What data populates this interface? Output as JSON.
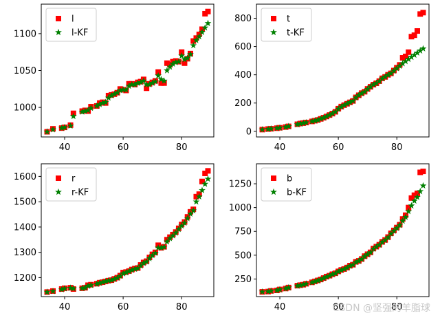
{
  "watermark": "CSDN @坚强的羊脂球",
  "colors": {
    "raw": "#ff0000",
    "kf": "#008000",
    "axis": "#000000",
    "legend_border": "#cccccc"
  },
  "chart_data": [
    {
      "type": "scatter",
      "xlim": [
        32,
        91
      ],
      "ylim": [
        960,
        1140
      ],
      "xticks": [
        40,
        60,
        80
      ],
      "yticks": [
        1000,
        1050,
        1100
      ],
      "legend": "top-left",
      "series": [
        {
          "name": "l",
          "marker": "square",
          "color": "#ff0000",
          "x": [
            34,
            36,
            39,
            40,
            42,
            43,
            46,
            47,
            48,
            49,
            51,
            52,
            53,
            54,
            55,
            56,
            57,
            58,
            59,
            60,
            61,
            62,
            63,
            64,
            65,
            66,
            67,
            68,
            69,
            70,
            71,
            72,
            73,
            74,
            75,
            76,
            77,
            78,
            79,
            80,
            81,
            82,
            83,
            84,
            85,
            86,
            87,
            88,
            89
          ],
          "y": [
            967,
            971,
            972,
            973,
            976,
            992,
            995,
            996,
            995,
            1001,
            1002,
            1006,
            1007,
            1006,
            1016,
            1017,
            1018,
            1020,
            1025,
            1024,
            1023,
            1032,
            1032,
            1031,
            1034,
            1035,
            1038,
            1026,
            1032,
            1034,
            1036,
            1048,
            1033,
            1033,
            1060,
            1058,
            1062,
            1063,
            1062,
            1075,
            1060,
            1066,
            1073,
            1090,
            1094,
            1099,
            1106,
            1127,
            1130
          ]
        },
        {
          "name": "l-KF",
          "marker": "star",
          "color": "#008000",
          "x": [
            34,
            36,
            39,
            40,
            42,
            43,
            46,
            47,
            48,
            49,
            51,
            52,
            53,
            54,
            55,
            56,
            57,
            58,
            59,
            60,
            61,
            62,
            63,
            64,
            65,
            66,
            67,
            68,
            69,
            70,
            71,
            72,
            73,
            74,
            75,
            76,
            77,
            78,
            79,
            80,
            81,
            82,
            83,
            84,
            85,
            86,
            87,
            88,
            89
          ],
          "y": [
            967,
            970,
            972,
            973,
            975,
            988,
            994,
            995,
            996,
            999,
            1002,
            1004,
            1006,
            1007,
            1013,
            1016,
            1018,
            1020,
            1023,
            1024,
            1024,
            1029,
            1031,
            1031,
            1033,
            1034,
            1036,
            1031,
            1031,
            1033,
            1035,
            1043,
            1038,
            1036,
            1050,
            1055,
            1059,
            1061,
            1062,
            1070,
            1065,
            1067,
            1072,
            1084,
            1091,
            1096,
            1102,
            1108,
            1114
          ]
        }
      ]
    },
    {
      "type": "scatter",
      "xlim": [
        32,
        91
      ],
      "ylim": [
        -40,
        900
      ],
      "xticks": [
        40,
        60,
        80
      ],
      "yticks": [
        0,
        200,
        400,
        600,
        800
      ],
      "legend": "top-left",
      "series": [
        {
          "name": "t",
          "marker": "square",
          "color": "#ff0000",
          "x": [
            34,
            36,
            37,
            39,
            40,
            42,
            43,
            46,
            47,
            48,
            49,
            51,
            52,
            53,
            54,
            55,
            56,
            57,
            58,
            59,
            60,
            61,
            62,
            63,
            64,
            65,
            66,
            67,
            68,
            69,
            70,
            71,
            72,
            73,
            74,
            75,
            76,
            77,
            78,
            79,
            80,
            81,
            82,
            83,
            84,
            85,
            86,
            87,
            88,
            89
          ],
          "y": [
            12,
            16,
            18,
            22,
            25,
            30,
            35,
            50,
            55,
            58,
            62,
            70,
            75,
            80,
            88,
            96,
            105,
            115,
            125,
            138,
            160,
            175,
            185,
            195,
            205,
            215,
            240,
            255,
            270,
            280,
            300,
            315,
            330,
            340,
            355,
            375,
            385,
            400,
            410,
            430,
            450,
            470,
            520,
            530,
            560,
            670,
            680,
            710,
            830,
            840
          ]
        },
        {
          "name": "t-KF",
          "marker": "star",
          "color": "#008000",
          "x": [
            34,
            36,
            37,
            39,
            40,
            42,
            43,
            46,
            47,
            48,
            49,
            51,
            52,
            53,
            54,
            55,
            56,
            57,
            58,
            59,
            60,
            61,
            62,
            63,
            64,
            65,
            66,
            67,
            68,
            69,
            70,
            71,
            72,
            73,
            74,
            75,
            76,
            77,
            78,
            79,
            80,
            81,
            82,
            83,
            84,
            85,
            86,
            87,
            88,
            89
          ],
          "y": [
            12,
            15,
            18,
            22,
            25,
            30,
            35,
            48,
            54,
            58,
            62,
            70,
            75,
            80,
            88,
            96,
            105,
            115,
            125,
            138,
            158,
            173,
            185,
            195,
            205,
            215,
            238,
            255,
            268,
            280,
            298,
            315,
            330,
            340,
            355,
            373,
            385,
            398,
            410,
            428,
            445,
            462,
            480,
            495,
            510,
            525,
            540,
            555,
            570,
            585
          ]
        }
      ]
    },
    {
      "type": "scatter",
      "xlim": [
        32,
        91
      ],
      "ylim": [
        1125,
        1650
      ],
      "xticks": [
        40,
        60,
        80
      ],
      "yticks": [
        1200,
        1300,
        1400,
        1500,
        1600
      ],
      "legend": "top-left",
      "series": [
        {
          "name": "r",
          "marker": "square",
          "color": "#ff0000",
          "x": [
            34,
            36,
            39,
            40,
            42,
            43,
            46,
            47,
            48,
            49,
            51,
            52,
            53,
            54,
            55,
            56,
            57,
            58,
            59,
            60,
            61,
            62,
            63,
            64,
            65,
            66,
            67,
            68,
            69,
            70,
            71,
            72,
            73,
            74,
            75,
            76,
            77,
            78,
            79,
            80,
            81,
            82,
            83,
            84,
            85,
            86,
            87,
            88,
            89
          ],
          "y": [
            1143,
            1147,
            1155,
            1158,
            1160,
            1155,
            1158,
            1160,
            1170,
            1172,
            1176,
            1180,
            1182,
            1185,
            1188,
            1190,
            1195,
            1200,
            1208,
            1220,
            1222,
            1226,
            1232,
            1236,
            1238,
            1250,
            1260,
            1265,
            1280,
            1292,
            1300,
            1328,
            1318,
            1322,
            1350,
            1360,
            1370,
            1380,
            1395,
            1410,
            1420,
            1440,
            1460,
            1470,
            1520,
            1530,
            1580,
            1612,
            1622
          ]
        },
        {
          "name": "r-KF",
          "marker": "star",
          "color": "#008000",
          "x": [
            34,
            36,
            39,
            40,
            42,
            43,
            46,
            47,
            48,
            49,
            51,
            52,
            53,
            54,
            55,
            56,
            57,
            58,
            59,
            60,
            61,
            62,
            63,
            64,
            65,
            66,
            67,
            68,
            69,
            70,
            71,
            72,
            73,
            74,
            75,
            76,
            77,
            78,
            79,
            80,
            81,
            82,
            83,
            84,
            85,
            86,
            87,
            88,
            89
          ],
          "y": [
            1143,
            1146,
            1153,
            1157,
            1159,
            1157,
            1158,
            1160,
            1167,
            1170,
            1175,
            1179,
            1182,
            1185,
            1188,
            1190,
            1194,
            1199,
            1206,
            1216,
            1220,
            1225,
            1230,
            1234,
            1237,
            1247,
            1257,
            1263,
            1276,
            1288,
            1297,
            1318,
            1318,
            1321,
            1342,
            1355,
            1366,
            1377,
            1391,
            1405,
            1416,
            1434,
            1452,
            1465,
            1500,
            1520,
            1545,
            1570,
            1590
          ]
        }
      ]
    },
    {
      "type": "scatter",
      "xlim": [
        32,
        91
      ],
      "ylim": [
        65,
        1460
      ],
      "xticks": [
        40,
        60,
        80
      ],
      "yticks": [
        250,
        500,
        750,
        1000,
        1250
      ],
      "legend": "top-left",
      "series": [
        {
          "name": "b",
          "marker": "square",
          "color": "#ff0000",
          "x": [
            34,
            36,
            37,
            39,
            40,
            42,
            43,
            46,
            47,
            48,
            49,
            51,
            52,
            53,
            54,
            55,
            56,
            57,
            58,
            59,
            60,
            61,
            62,
            63,
            64,
            65,
            66,
            67,
            68,
            69,
            70,
            71,
            72,
            73,
            74,
            75,
            76,
            77,
            78,
            79,
            80,
            81,
            82,
            83,
            84,
            85,
            86,
            87,
            88,
            89
          ],
          "y": [
            115,
            118,
            125,
            130,
            140,
            150,
            160,
            180,
            185,
            190,
            200,
            215,
            225,
            235,
            245,
            260,
            275,
            285,
            300,
            310,
            330,
            345,
            355,
            370,
            390,
            400,
            430,
            440,
            460,
            490,
            510,
            530,
            570,
            590,
            610,
            640,
            660,
            690,
            730,
            760,
            790,
            820,
            880,
            920,
            1000,
            1100,
            1130,
            1150,
            1370,
            1380
          ]
        },
        {
          "name": "b-KF",
          "marker": "star",
          "color": "#008000",
          "x": [
            34,
            36,
            37,
            39,
            40,
            42,
            43,
            46,
            47,
            48,
            49,
            51,
            52,
            53,
            54,
            55,
            56,
            57,
            58,
            59,
            60,
            61,
            62,
            63,
            64,
            65,
            66,
            67,
            68,
            69,
            70,
            71,
            72,
            73,
            74,
            75,
            76,
            77,
            78,
            79,
            80,
            81,
            82,
            83,
            84,
            85,
            86,
            87,
            88,
            89
          ],
          "y": [
            115,
            118,
            124,
            130,
            139,
            149,
            159,
            178,
            184,
            190,
            199,
            213,
            223,
            233,
            244,
            258,
            273,
            284,
            298,
            309,
            327,
            342,
            354,
            368,
            387,
            399,
            426,
            439,
            458,
            486,
            507,
            528,
            565,
            587,
            608,
            637,
            657,
            686,
            725,
            755,
            785,
            815,
            860,
            900,
            960,
            1020,
            1070,
            1110,
            1170,
            1230
          ]
        }
      ]
    }
  ]
}
